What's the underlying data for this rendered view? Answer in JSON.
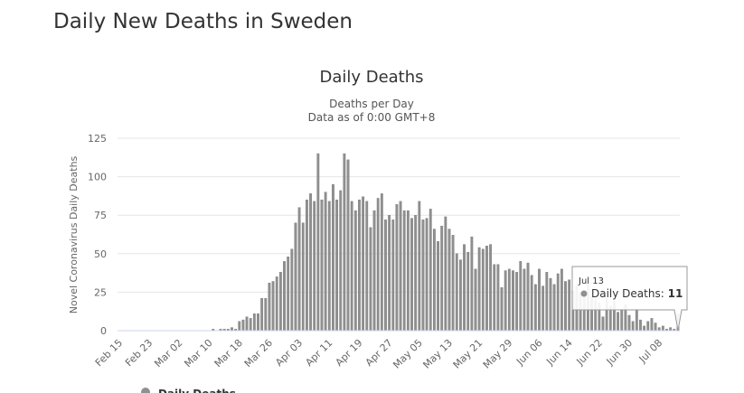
{
  "page_title": "Daily New Deaths in Sweden",
  "chart_data": {
    "type": "bar",
    "title": "Daily Deaths",
    "subtitle": [
      "Deaths per Day",
      "Data as of 0:00 GMT+8"
    ],
    "y_label": "Novel Coronavirus Daily Deaths",
    "categories": [
      "Feb 15",
      null,
      null,
      null,
      null,
      null,
      null,
      null,
      "Feb 23",
      null,
      null,
      null,
      null,
      null,
      null,
      null,
      "Mar 02",
      null,
      null,
      null,
      null,
      null,
      null,
      null,
      "Mar 10",
      null,
      null,
      null,
      null,
      null,
      null,
      null,
      "Mar 18",
      null,
      null,
      null,
      null,
      null,
      null,
      null,
      "Mar 26",
      null,
      null,
      null,
      null,
      null,
      null,
      null,
      "Apr 03",
      null,
      null,
      null,
      null,
      null,
      null,
      null,
      "Apr 11",
      null,
      null,
      null,
      null,
      null,
      null,
      null,
      "Apr 19",
      null,
      null,
      null,
      null,
      null,
      null,
      null,
      "Apr 27",
      null,
      null,
      null,
      null,
      null,
      null,
      null,
      "May 05",
      null,
      null,
      null,
      null,
      null,
      null,
      null,
      "May 13",
      null,
      null,
      null,
      null,
      null,
      null,
      null,
      "May 21",
      null,
      null,
      null,
      null,
      null,
      null,
      null,
      "May 29",
      null,
      null,
      null,
      null,
      null,
      null,
      null,
      "Jun 06",
      null,
      null,
      null,
      null,
      null,
      null,
      null,
      "Jun 14",
      null,
      null,
      null,
      null,
      null,
      null,
      null,
      "Jun 22",
      null,
      null,
      null,
      null,
      null,
      null,
      null,
      "Jun 30",
      null,
      null,
      null,
      null,
      null,
      null,
      null,
      "Jul 08",
      null,
      null,
      null,
      null,
      null
    ],
    "series": [
      {
        "name": "Daily Deaths",
        "color": "#909090",
        "values": [
          0,
          0,
          0,
          0,
          0,
          0,
          0,
          0,
          0,
          0,
          0,
          0,
          0,
          0,
          0,
          0,
          0,
          0,
          0,
          0,
          0,
          0,
          0,
          0,
          0,
          1,
          0,
          1,
          1,
          1,
          2,
          1,
          6,
          7,
          9,
          8,
          11,
          11,
          21,
          21,
          31,
          32,
          35,
          38,
          45,
          48,
          53,
          70,
          80,
          70,
          85,
          89,
          84,
          115,
          85,
          90,
          84,
          95,
          85,
          91,
          115,
          111,
          84,
          78,
          85,
          87,
          84,
          67,
          78,
          86,
          89,
          72,
          75,
          72,
          82,
          84,
          78,
          78,
          73,
          75,
          84,
          72,
          73,
          79,
          66,
          58,
          68,
          74,
          66,
          62,
          50,
          46,
          56,
          51,
          61,
          40,
          54,
          53,
          55,
          56,
          43,
          43,
          28,
          39,
          40,
          39,
          38,
          45,
          40,
          44,
          36,
          30,
          40,
          29,
          38,
          34,
          30,
          37,
          40,
          32,
          33,
          26,
          29,
          25,
          24,
          30,
          22,
          20,
          18,
          9,
          21,
          16,
          19,
          12,
          14,
          17,
          10,
          6,
          14,
          7,
          3,
          6,
          8,
          5,
          2,
          3,
          1,
          2,
          1,
          11
        ]
      }
    ],
    "ylim": [
      0,
      125
    ],
    "yticks": [
      0,
      25,
      50,
      75,
      100,
      125
    ],
    "grid": true,
    "tooltip": {
      "date": "Jul 13",
      "label": "Daily Deaths:"
    }
  }
}
